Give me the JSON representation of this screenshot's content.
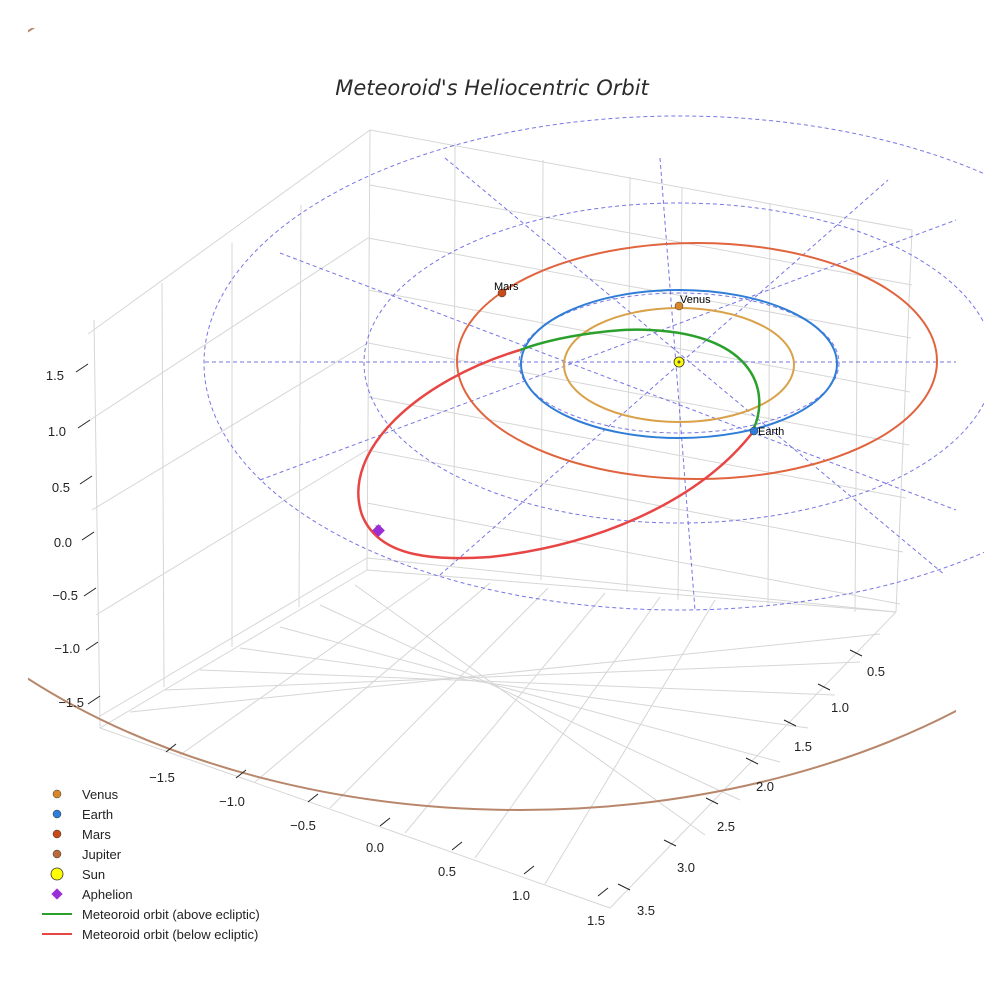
{
  "chart_data": {
    "type": "3d-orbit",
    "title": "Meteoroid's Heliocentric Orbit",
    "axes": {
      "x_ticks": [
        "−1.5",
        "−1.0",
        "−0.5",
        "0.0",
        "0.5",
        "1.0",
        "1.5"
      ],
      "y_ticks": [
        "0.5",
        "1.0",
        "1.5",
        "2.0",
        "2.5",
        "3.0",
        "3.5"
      ],
      "z_ticks": [
        "1.5",
        "1.0",
        "0.5",
        "0.0",
        "−0.5",
        "−1.0",
        "−1.5"
      ],
      "xlim": [
        -1.8,
        1.7
      ],
      "ylim": [
        0.2,
        3.7
      ],
      "zlim": [
        -1.8,
        1.8
      ]
    },
    "bodies": [
      {
        "name": "Venus",
        "orbit_radius_au": 0.72,
        "color": "#d99a3a"
      },
      {
        "name": "Earth",
        "orbit_radius_au": 1.0,
        "color": "#2f7dd6"
      },
      {
        "name": "Mars",
        "orbit_radius_au": 1.52,
        "color": "#e0653f"
      },
      {
        "name": "Jupiter",
        "orbit_radius_au": 5.2,
        "color": "#b8876b"
      },
      {
        "name": "Sun",
        "orbit_radius_au": 0,
        "color": "#ffff00"
      }
    ],
    "meteoroid": {
      "perihelion_au": 0.72,
      "aphelion_au": 2.6,
      "above_ecliptic_color": "#2ca02c",
      "below_ecliptic_color": "#e84545",
      "aphelion_marker_color": "#9b2fd6"
    },
    "ecliptic_grid_radii_au": [
      1,
      2,
      3
    ],
    "legend": [
      {
        "label": "Venus",
        "marker": "dot",
        "color": "#d9862a"
      },
      {
        "label": "Earth",
        "marker": "dot",
        "color": "#2f7dd6"
      },
      {
        "label": "Mars",
        "marker": "dot",
        "color": "#c84a1a"
      },
      {
        "label": "Jupiter",
        "marker": "dot",
        "color": "#b86a3a"
      },
      {
        "label": "Sun",
        "marker": "sun",
        "color": "#ffff00"
      },
      {
        "label": "Aphelion",
        "marker": "diamond",
        "color": "#9b2fd6"
      },
      {
        "label": "Meteoroid orbit (above ecliptic)",
        "marker": "line",
        "color": "#2ca02c"
      },
      {
        "label": "Meteoroid orbit (below ecliptic)",
        "marker": "line",
        "color": "#e84545"
      }
    ]
  }
}
